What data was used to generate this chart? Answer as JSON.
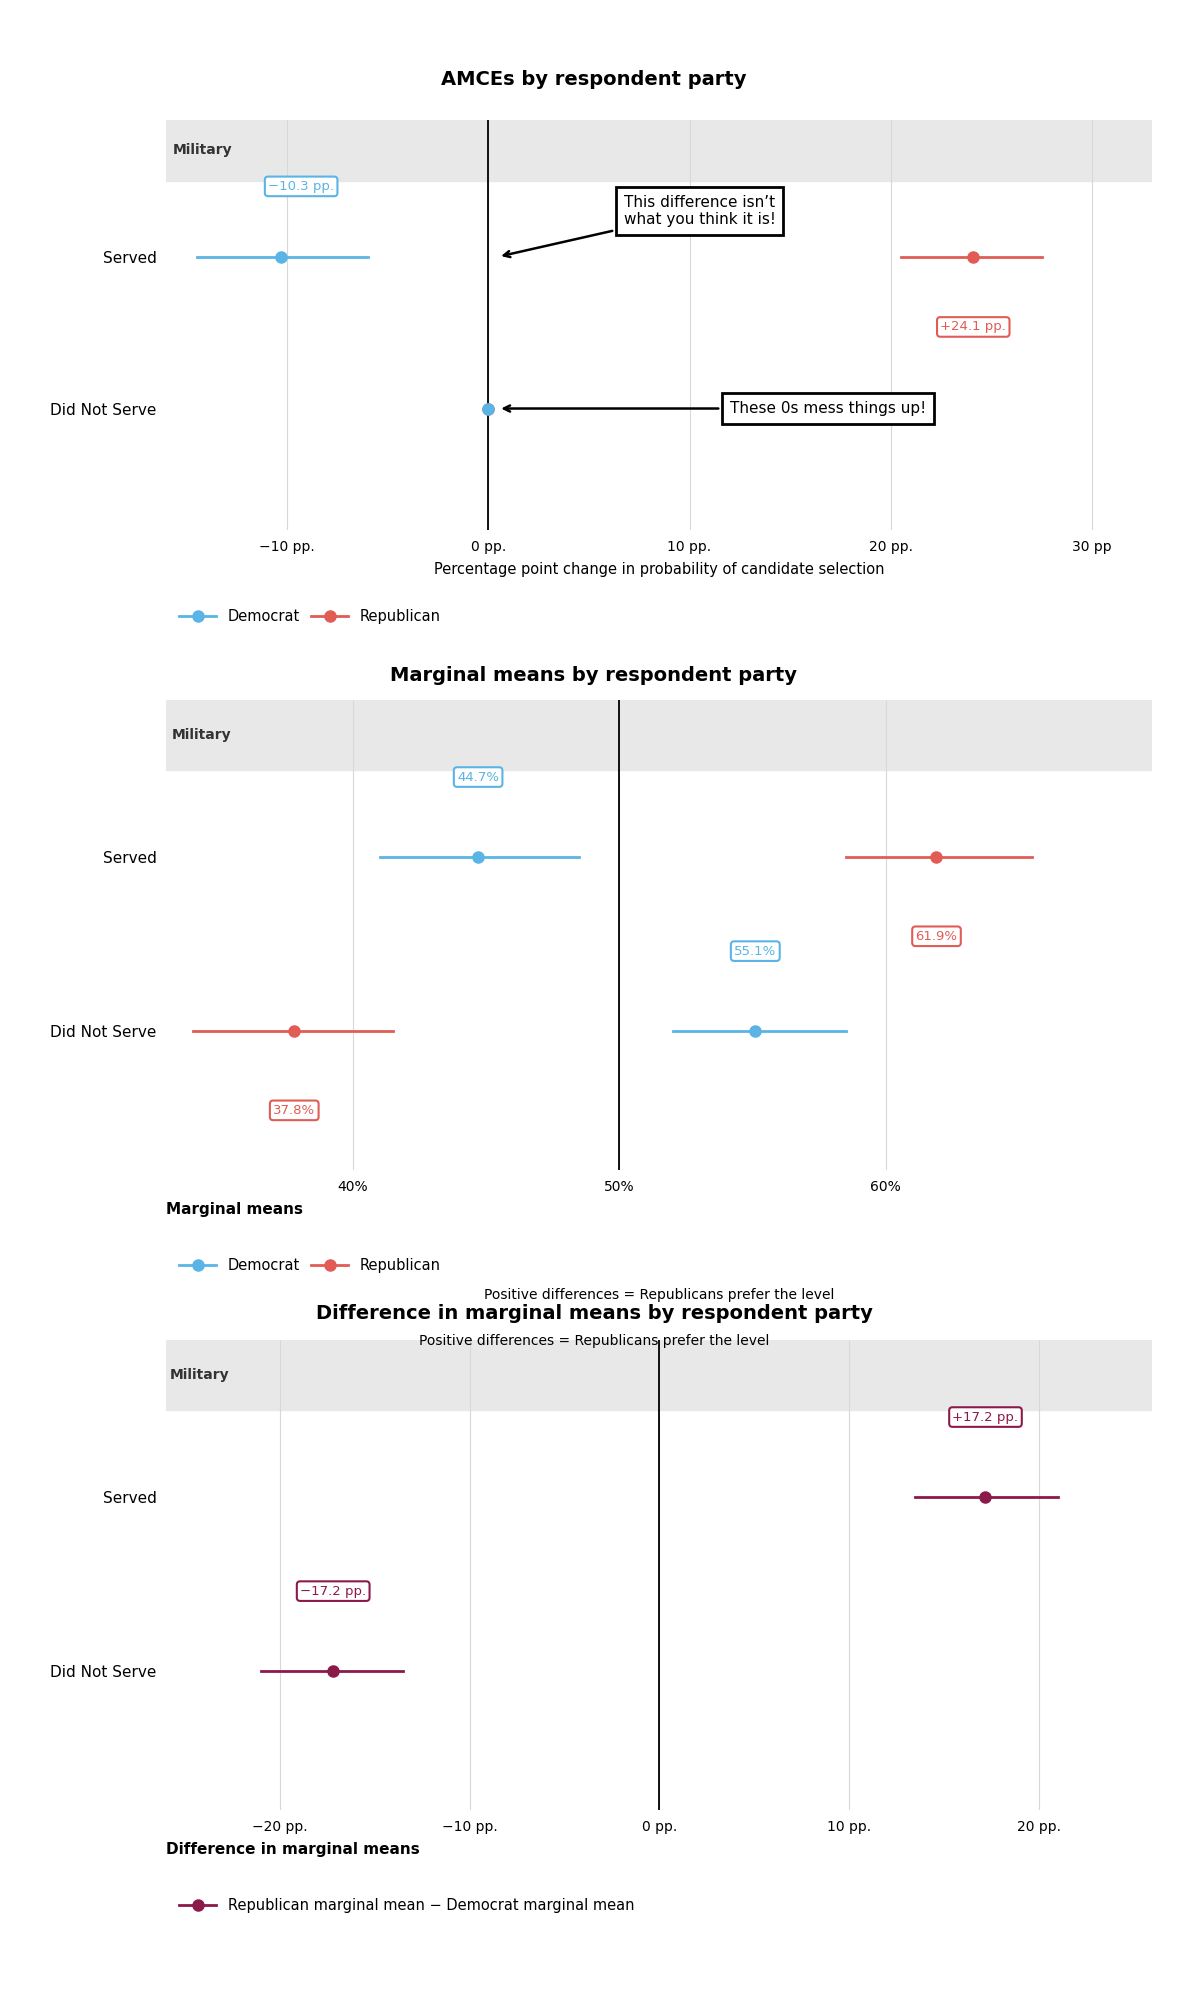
{
  "panel1": {
    "title": "AMCEs by respondent party",
    "section_label": "Military",
    "rows": [
      "Served",
      "Did Not Serve"
    ],
    "democrat": {
      "values": [
        -10.3,
        0.0
      ],
      "ci_low": [
        -14.5,
        -1.5
      ],
      "ci_high": [
        -6.0,
        1.5
      ]
    },
    "republican": {
      "values": [
        24.1,
        0.0
      ],
      "ci_low": [
        20.5,
        -1.5
      ],
      "ci_high": [
        27.5,
        1.5
      ]
    },
    "xlim": [
      -16,
      33
    ],
    "xticks": [
      -10,
      0,
      10,
      20,
      30
    ],
    "xticklabels": [
      "−10 pp.",
      "0 pp.",
      "10 pp.",
      "20 pp.",
      "30 pp"
    ],
    "xlabel": "Percentage point change in probability of candidate selection",
    "vline": 0,
    "label_dem_served": "−10.3 pp.",
    "label_rep_served": "+24.1 pp.",
    "annot1_text": "This difference isn’t\nwhat you think it is!",
    "annot2_text": "These 0s mess things up!"
  },
  "panel2": {
    "title": "Marginal means by respondent party",
    "section_label": "Military",
    "rows": [
      "Served",
      "Did Not Serve"
    ],
    "democrat": {
      "values": [
        44.7,
        55.1
      ],
      "ci_low": [
        41.0,
        52.0
      ],
      "ci_high": [
        48.5,
        58.5
      ]
    },
    "republican": {
      "values": [
        61.9,
        37.8
      ],
      "ci_low": [
        58.5,
        34.0
      ],
      "ci_high": [
        65.5,
        41.5
      ]
    },
    "xlim": [
      33,
      70
    ],
    "xticks": [
      40,
      50,
      60
    ],
    "xticklabels": [
      "40%",
      "50%",
      "60%"
    ],
    "xlabel": "Marginal means",
    "vline": 50,
    "label_dem_served": "44.7%",
    "label_rep_served": "61.9%",
    "label_dem_dns": "55.1%",
    "label_rep_dns": "37.8%"
  },
  "panel3": {
    "title": "Difference in marginal means by respondent party",
    "subtitle": "Positive differences = Republicans prefer the level",
    "section_label": "Military",
    "rows": [
      "Served",
      "Did Not Serve"
    ],
    "values": [
      17.2,
      -17.2
    ],
    "ci_low": [
      13.5,
      -21.0
    ],
    "ci_high": [
      21.0,
      -13.5
    ],
    "xlim": [
      -26,
      26
    ],
    "xticks": [
      -20,
      -10,
      0,
      10,
      20
    ],
    "xticklabels": [
      "−20 pp.",
      "−10 pp.",
      "0 pp.",
      "10 pp.",
      "20 pp."
    ],
    "xlabel": "Difference in marginal means",
    "vline": 0,
    "label_served": "+17.2 pp.",
    "label_dns": "−17.2 pp."
  },
  "colors": {
    "democrat": "#5ab4e5",
    "republican": "#e05c55",
    "diff": "#8b1a4a",
    "section_bg": "#e8e8e8",
    "grid": "#d8d8d8"
  },
  "background": "#ffffff"
}
